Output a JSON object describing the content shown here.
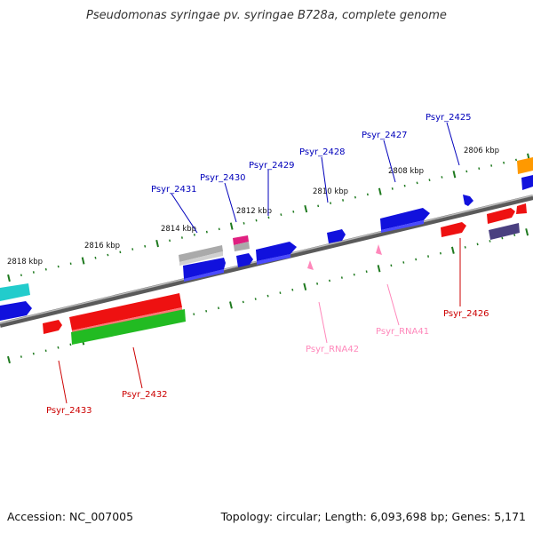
{
  "title": "Pseudomonas syringae pv. syringae B728a, complete genome",
  "footer": {
    "accession": "Accession: NC_007005",
    "summary": "Topology: circular; Length: 6,093,698 bp; Genes: 5,171"
  },
  "colors": {
    "background": "#ffffff",
    "backbone": "#888888",
    "tick_marks": "#1f7a1f",
    "blue_gene_label": "#0000bb",
    "red_gene_label": "#cc0000",
    "rna_label": "#ff88bb"
  },
  "kbp_labels": [
    "2806 kbp",
    "2808 kbp",
    "2810 kbp",
    "2812 kbp",
    "2814 kbp",
    "2816 kbp",
    "2818 kbp"
  ],
  "gene_labels": {
    "top": [
      "Psyr_2425",
      "Psyr_2427",
      "Psyr_2428",
      "Psyr_2429",
      "Psyr_2430",
      "Psyr_2431"
    ],
    "bottom_red": [
      "Psyr_2426",
      "Psyr_2432",
      "Psyr_2433"
    ],
    "rna": [
      "Psyr_RNA41",
      "Psyr_RNA42"
    ]
  }
}
